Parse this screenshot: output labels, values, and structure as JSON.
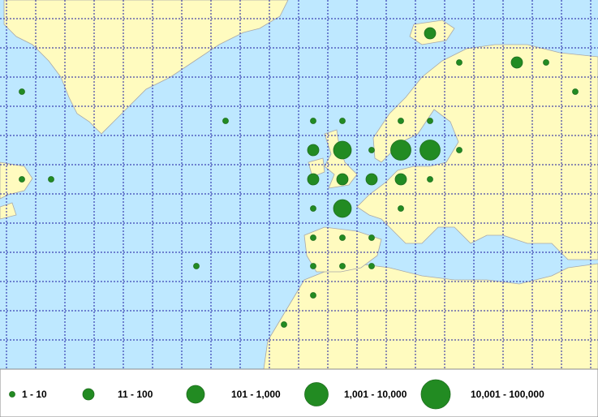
{
  "legend": {
    "items": [
      "1 - 10",
      "11 - 100",
      "101 - 1,000",
      "1,001 - 10,000",
      "10,001 - 100,000"
    ]
  }
}
